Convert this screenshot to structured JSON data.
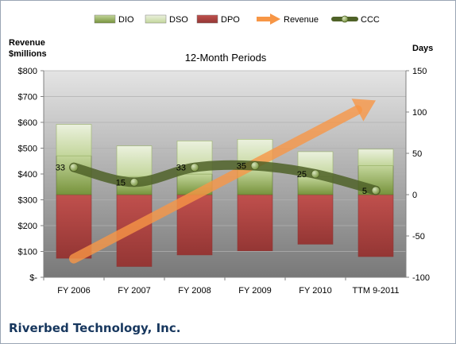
{
  "chart_data": {
    "type": "bar",
    "title": "12-Month Periods",
    "company": "Riverbed Technology, Inc.",
    "left_axis_label_line1": "Revenue",
    "left_axis_label_line2": "$millions",
    "right_axis_label": "Days",
    "categories": [
      "FY 2006",
      "FY 2007",
      "FY 2008",
      "FY 2009",
      "FY 2010",
      "TTM 9-2011"
    ],
    "left_axis": {
      "min": 0,
      "max": 800,
      "step": 100,
      "tick_labels": [
        "$-",
        "$100",
        "$200",
        "$300",
        "$400",
        "$500",
        "$600",
        "$700",
        "$800"
      ]
    },
    "right_axis": {
      "min": -100,
      "max": 150,
      "step": 50,
      "tick_labels": [
        "-100",
        "-50",
        "0",
        "50",
        "100",
        "150"
      ]
    },
    "legend": [
      "DIO",
      "DSO",
      "DPO",
      "Revenue",
      "CCC"
    ],
    "legend_position": "top",
    "series": [
      {
        "name": "DIO",
        "axis": "right",
        "values": [
          47,
          22,
          25,
          30,
          22,
          35
        ]
      },
      {
        "name": "DSO",
        "axis": "right",
        "values": [
          38,
          37,
          40,
          37,
          30,
          20
        ]
      },
      {
        "name": "DPO",
        "axis": "right",
        "values": [
          -77,
          -87,
          -73,
          -68,
          -60,
          -75
        ]
      },
      {
        "name": "Revenue",
        "axis": "left",
        "type": "line",
        "values": [
          72,
          135,
          220,
          330,
          520,
          685
        ]
      },
      {
        "name": "CCC",
        "axis": "right",
        "type": "line",
        "values": [
          33,
          15,
          33,
          35,
          25,
          5
        ]
      }
    ],
    "data_labels": [
      "33",
      "15",
      "33",
      "35",
      "25",
      "5"
    ],
    "colors": {
      "DIO": "#9bbb59",
      "DSO": "#d7e4bd",
      "DPO": "#c0504d",
      "Revenue": "#f79646",
      "CCC": "#4f6228",
      "plot_top": "#e4e4e4",
      "plot_bottom": "#787878"
    },
    "grid": true
  }
}
